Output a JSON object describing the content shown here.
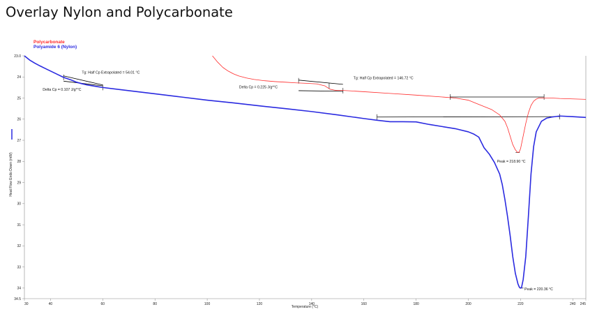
{
  "page": {
    "title": "Overlay Nylon and Polycarbonate"
  },
  "chart_data": {
    "type": "line",
    "title": "",
    "xlabel": "Temperature (°C)",
    "ylabel": "Heat Flow Endo Down (mW)",
    "xlim": [
      30,
      245
    ],
    "ylim": [
      23.0,
      34.5
    ],
    "y_inverted": true,
    "x_ticks": [
      "30",
      "40",
      "60",
      "80",
      "100",
      "120",
      "140",
      "160",
      "180",
      "200",
      "220",
      "240",
      "245"
    ],
    "y_ticks": [
      "23.0",
      "24",
      "25",
      "26",
      "27",
      "28",
      "29",
      "30",
      "31",
      "32",
      "33",
      "34",
      "34.5"
    ],
    "series": [
      {
        "name": "Polycarbonate",
        "color": "#ff2a2a",
        "x": [
          102,
          104,
          106,
          108,
          110,
          112,
          115,
          118,
          122,
          126,
          130,
          134,
          138,
          142,
          145,
          147,
          149,
          150,
          151,
          152,
          155,
          160,
          170,
          180,
          190,
          195,
          200,
          203,
          206,
          209,
          212,
          214,
          215,
          216,
          217,
          218,
          218.9,
          219.5,
          220,
          220.5,
          221,
          222,
          223,
          224,
          225,
          226,
          227,
          228,
          229,
          230,
          232,
          235,
          240,
          245
        ],
        "y": [
          23.0,
          23.3,
          23.55,
          23.72,
          23.85,
          23.95,
          24.05,
          24.12,
          24.18,
          24.22,
          24.25,
          24.28,
          24.3,
          24.33,
          24.42,
          24.58,
          24.63,
          24.64,
          24.64,
          24.64,
          24.66,
          24.7,
          24.78,
          24.86,
          24.95,
          25.0,
          25.1,
          25.25,
          25.4,
          25.55,
          25.8,
          26.1,
          26.4,
          26.8,
          27.2,
          27.45,
          27.58,
          27.55,
          27.4,
          27.1,
          26.8,
          26.2,
          25.7,
          25.35,
          25.15,
          25.05,
          25.0,
          25.0,
          25.0,
          25.0,
          25.0,
          25.02,
          25.04,
          25.06
        ]
      },
      {
        "name": "Polyamide 6 (Nylon)",
        "color": "#2a2ae0",
        "x": [
          30,
          32,
          34,
          36,
          38,
          40,
          42,
          45,
          48,
          50,
          52,
          54,
          56,
          58,
          60,
          70,
          80,
          90,
          100,
          110,
          120,
          130,
          140,
          150,
          160,
          165,
          170,
          175,
          180,
          185,
          190,
          195,
          200,
          202,
          204,
          205,
          206,
          208,
          210,
          212,
          213,
          214,
          215,
          216,
          217,
          218,
          219,
          219.5,
          220,
          220.36,
          221,
          222,
          223,
          224,
          225,
          226,
          228,
          230,
          232,
          235,
          240,
          245
        ],
        "y": [
          23.0,
          23.2,
          23.35,
          23.48,
          23.6,
          23.72,
          23.84,
          24.02,
          24.15,
          24.25,
          24.32,
          24.38,
          24.42,
          24.46,
          24.5,
          24.65,
          24.8,
          24.95,
          25.1,
          25.23,
          25.37,
          25.5,
          25.64,
          25.8,
          25.97,
          26.05,
          26.12,
          26.12,
          26.13,
          26.25,
          26.35,
          26.45,
          26.6,
          26.7,
          26.85,
          27.1,
          27.35,
          27.65,
          28.05,
          28.6,
          29.1,
          29.8,
          30.6,
          31.5,
          32.5,
          33.3,
          33.8,
          33.95,
          34.0,
          33.98,
          33.6,
          32.5,
          30.6,
          28.6,
          27.3,
          26.6,
          26.1,
          25.95,
          25.9,
          25.85,
          25.88,
          25.92
        ]
      }
    ],
    "annotations": [
      {
        "label": "Tg: Half Cp Extrapolated = 54.01 °C"
      },
      {
        "label": "Delta Cp = 0.107 J/g*°C"
      },
      {
        "label": "Tg: Half Cp Extrapolated = 146.72 °C"
      },
      {
        "label": "Delta Cp = 0.225 J/g*°C"
      },
      {
        "label": "Peak = 218.90 °C"
      },
      {
        "label": "Peak = 220.36 °C"
      }
    ],
    "grid": false,
    "legend": "top-left"
  }
}
